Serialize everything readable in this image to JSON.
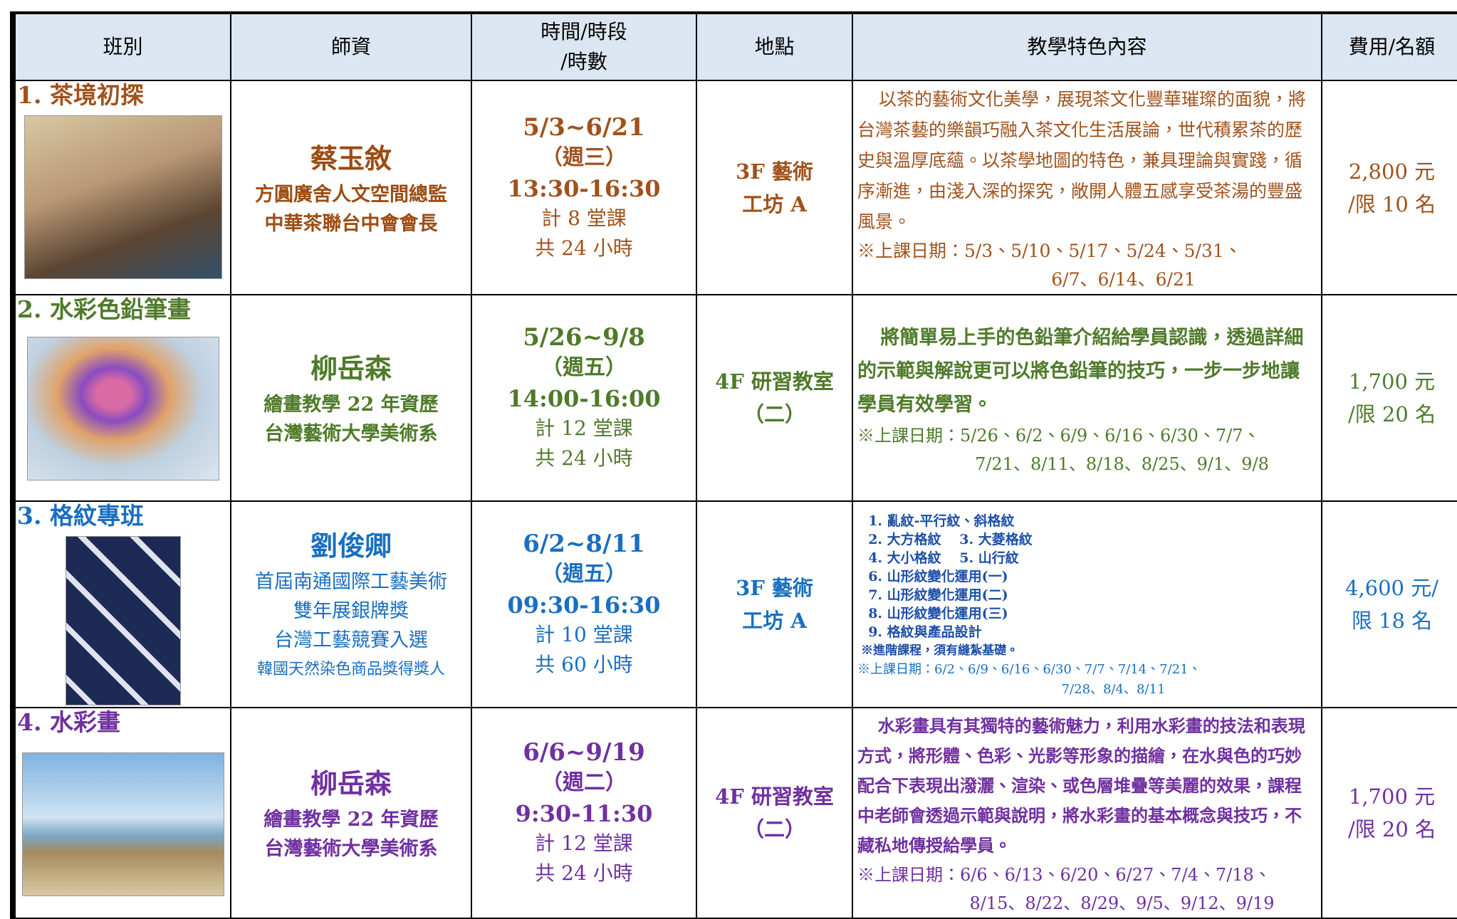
{
  "header": {
    "cells": [
      "班別",
      "師資",
      [
        "時間/時段",
        "/時數"
      ],
      "地點",
      "教學特色內容",
      "費用/名額"
    ]
  },
  "rows": [
    {
      "class_name": "1. 茶境初探",
      "teacher": "蔡玉敘",
      "teacher_titles": [
        "方圓廣舍人文空間總監",
        "中華茶聯台中會會長"
      ],
      "dates": "5/3~6/21",
      "weekday": "（週三）",
      "time": "13:30-16:30",
      "sessions": "計 8 堂課",
      "hours": "共 24 小時",
      "location": [
        "3F 藝術",
        "工坊 A"
      ],
      "description": [
        "以茶的藝術文化美學，展現茶文化豐華璀璨的面貌，將台灣茶藝的樂韻巧融入茶文化生活展論，世代積累茶的歷史與溫厚底蘊。以茶學地圖的特色，兼具理論與實踐，循序漸進，由淺入深的探究，敞開人體五感享受茶湯的豐盛風景。"
      ],
      "schedule": [
        "※上課日期：5/3、5/10、5/17、5/24、5/31、",
        "6/7、6/14、6/21"
      ],
      "fee": [
        "2,800 元",
        "/限 10 名"
      ]
    },
    {
      "class_name": "2. 水彩色鉛筆畫",
      "teacher": "柳岳森",
      "teacher_titles": [
        "繪畫教學 22 年資歷",
        "台灣藝術大學美術系"
      ],
      "dates": "5/26~9/8",
      "weekday": "（週五）",
      "time": "14:00-16:00",
      "sessions": "計 12 堂課",
      "hours": "共 24 小時",
      "location": [
        "4F 研習教室",
        "（二）"
      ],
      "description": [
        "將簡單易上手的色鉛筆介紹給學員認識，透過詳細的示範與解說更可以將色鉛筆的技巧，一步一步地讓學員有效學習。"
      ],
      "schedule": [
        "※上課日期：5/26、6/2、6/9、6/16、6/30、7/7、",
        "7/21、8/11、8/18、8/25、9/1、9/8"
      ],
      "fee": [
        "1,700 元",
        "/限 20 名"
      ]
    },
    {
      "class_name": "3. 格紋專班",
      "teacher": "劉俊卿",
      "teacher_titles": [
        "首屆南通國際工藝美術",
        "雙年展銀牌獎",
        "台灣工藝競賽入選",
        "韓國天然染色商品獎得獎人"
      ],
      "dates": "6/2~8/11",
      "weekday": "（週五）",
      "time": "09:30-16:30",
      "sessions": "計 10 堂課",
      "hours": "共 60 小時",
      "location": [
        "3F 藝術",
        "工坊 A"
      ],
      "description": [
        "1.  亂紋-平行紋、斜格紋",
        "2.  大方格紋　  3.  大菱格紋",
        "4.  大小格紋　  5.  山行紋",
        "6.  山形紋變化運用(一)",
        "7.  山形紋變化運用(二)",
        "8.  山形紋變化運用(三)",
        "9.  格紋與產品設計",
        "※進階課程，須有縫紮基礎。"
      ],
      "schedule": [
        "※上課日期：6/2、6/9、6/16、6/30、7/7、7/14、7/21、",
        "7/28、8/4、8/11"
      ],
      "fee": [
        "4,600 元/",
        "限 18 名"
      ]
    },
    {
      "class_name": "4. 水彩畫",
      "teacher": "柳岳森",
      "teacher_titles": [
        "繪畫教學 22 年資歷",
        "台灣藝術大學美術系"
      ],
      "dates": "6/6~9/19",
      "weekday": "（週二）",
      "time": "9:30-11:30",
      "sessions": "計 12 堂課",
      "hours": "共 24 小時",
      "location": [
        "4F 研習教室",
        "（二）"
      ],
      "description": [
        "水彩畫具有其獨特的藝術魅力，利用水彩畫的技法和表現方式，將形體、色彩、光影等形象的描繪，在水與色的巧妙配合下表現出潑灑、渲染、或色層堆疊等美麗的效果，課程中老師會透過示範與說明，將水彩畫的基本概念與技巧，不藏私地傳授給學員。"
      ],
      "schedule": [
        "※上課日期：6/6、6/13、6/20、6/27、7/4、7/18、",
        "8/15、8/22、8/29、9/5、9/12、9/19"
      ],
      "fee": [
        "1,700 元",
        "/限 20 名"
      ]
    }
  ]
}
